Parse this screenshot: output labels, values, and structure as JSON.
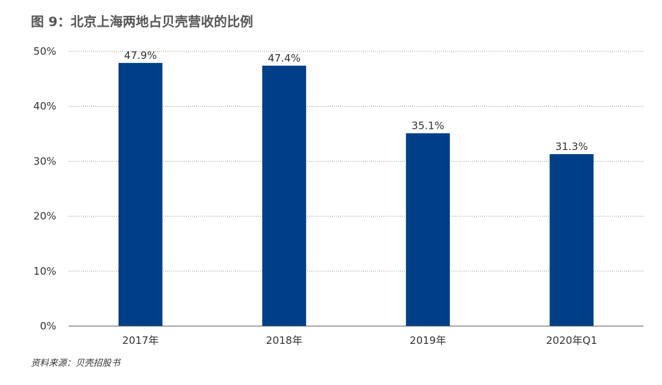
{
  "title": "图 9：北京上海两地占贝壳营收的比例",
  "source": "资料来源：贝壳招股书",
  "colors": {
    "bar": "#003f87",
    "grid": "#888888",
    "axis": "#555555"
  },
  "chart_data": {
    "type": "bar",
    "title": "图 9：北京上海两地占贝壳营收的比例",
    "categories": [
      "2017年",
      "2018年",
      "2019年",
      "2020年Q1"
    ],
    "values": [
      47.9,
      47.4,
      35.1,
      31.3
    ],
    "data_labels": [
      "47.9%",
      "47.4%",
      "35.1%",
      "31.3%"
    ],
    "y_ticks": [
      0,
      10,
      20,
      30,
      40,
      50
    ],
    "y_tick_labels": [
      "0%",
      "10%",
      "20%",
      "30%",
      "40%",
      "50%"
    ],
    "ylim": [
      0,
      50
    ],
    "grid": true,
    "grid_style": "dotted",
    "legend": "none",
    "xlabel": "",
    "ylabel": ""
  }
}
